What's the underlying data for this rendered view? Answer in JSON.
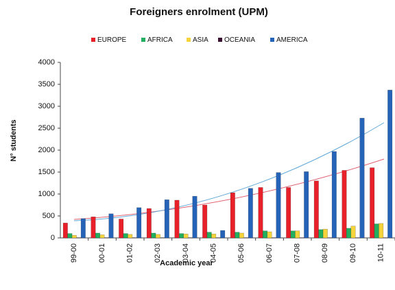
{
  "chart_data": {
    "type": "bar",
    "title": "Foreigners enrolment (UPM)",
    "xlabel": "Academic year",
    "ylabel": "N° students",
    "categories": [
      "99-00",
      "00-01",
      "01-02",
      "02-03",
      "03-04",
      "04-05",
      "05-06",
      "06-07",
      "07-08",
      "08-09",
      "09-10",
      "10-11"
    ],
    "series": [
      {
        "name": "EUROPE",
        "color": "#e8202a",
        "values": [
          340,
          480,
          430,
          670,
          860,
          750,
          1030,
          1150,
          1150,
          1300,
          1540,
          1600
        ]
      },
      {
        "name": "AFRICA",
        "color": "#22b060",
        "values": [
          100,
          110,
          100,
          110,
          100,
          130,
          130,
          160,
          160,
          190,
          220,
          320
        ]
      },
      {
        "name": "ASIA",
        "color": "#f5d33a",
        "values": [
          60,
          70,
          80,
          80,
          90,
          90,
          110,
          140,
          160,
          200,
          270,
          330
        ]
      },
      {
        "name": "OCEANIA",
        "color": "#3a1030",
        "values": [
          5,
          5,
          5,
          5,
          5,
          5,
          5,
          5,
          5,
          5,
          5,
          5
        ]
      },
      {
        "name": "AMERICA",
        "color": "#2563b8",
        "values": [
          440,
          550,
          690,
          870,
          950,
          170,
          1130,
          1490,
          1510,
          1970,
          2730,
          3370
        ]
      }
    ],
    "ylim": [
      0,
      4000
    ],
    "yticks": [
      0,
      500,
      1000,
      1500,
      2000,
      2500,
      3000,
      3500,
      4000
    ],
    "grid": false
  }
}
